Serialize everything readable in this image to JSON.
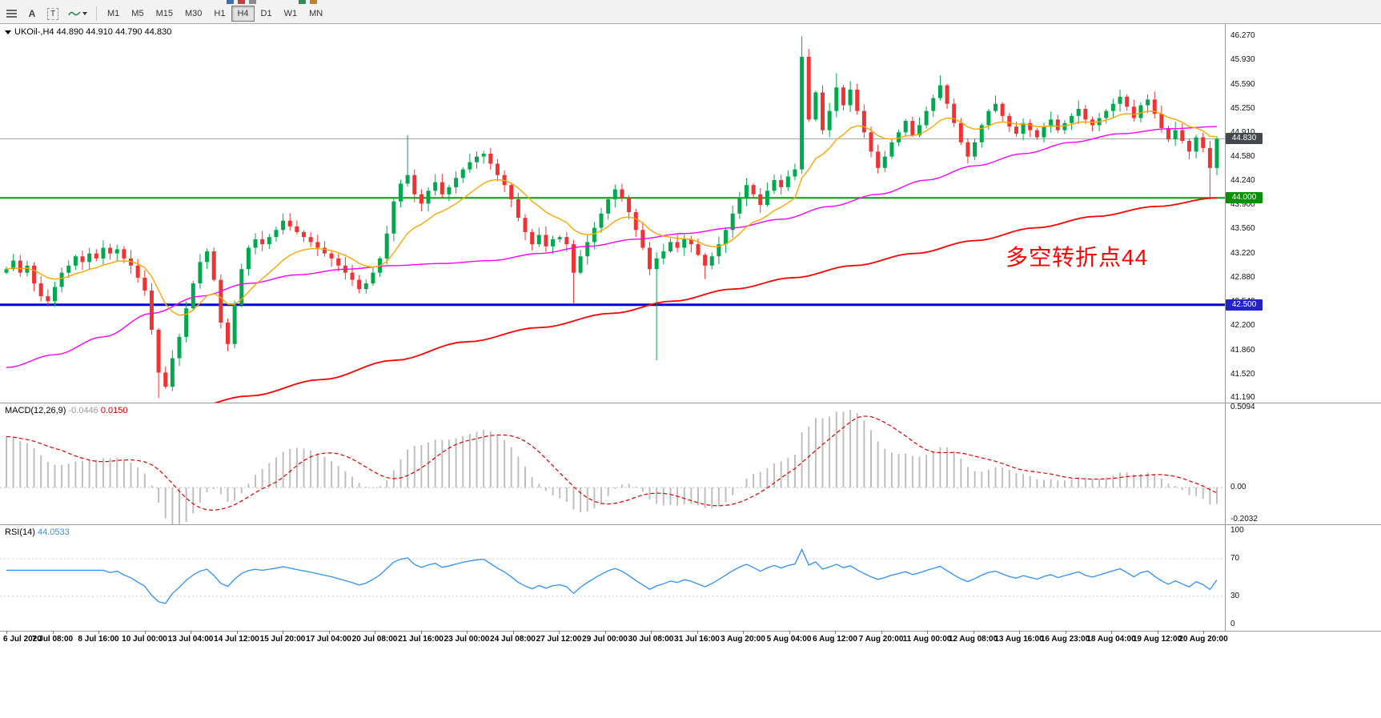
{
  "toolbar": {
    "text_tool_label": "A",
    "label_tool_label": "T",
    "timeframes": [
      "M1",
      "M5",
      "M15",
      "M30",
      "H1",
      "H4",
      "D1",
      "W1",
      "MN"
    ],
    "active_timeframe": "H4"
  },
  "chart": {
    "header_text": "UKOil-,H4 44.890 44.910 44.790 44.830",
    "annotation": {
      "text": "多空转折点44",
      "color": "#FF0000"
    },
    "price_axis_labels": [
      "46.270",
      "45.930",
      "45.590",
      "45.250",
      "44.910",
      "44.580",
      "44.240",
      "43.900",
      "43.560",
      "43.220",
      "42.880",
      "42.540",
      "42.200",
      "41.860",
      "41.520",
      "41.190"
    ],
    "price_tags": [
      {
        "text": "44.830",
        "price": 44.83,
        "bg": "#43484D",
        "line_color": "#A0A0A0",
        "line_width": 1
      },
      {
        "text": "44.000",
        "price": 44.0,
        "bg": "#009100",
        "line_color": "#00A000",
        "line_width": 2
      },
      {
        "text": "42.500",
        "price": 42.5,
        "bg": "#2222CC",
        "line_color": "#0000E0",
        "line_width": 3
      }
    ],
    "colors": {
      "up": "#00A84E",
      "down": "#EF3333",
      "ma_fast": "#FFA500",
      "ma_mid": "#FF00FF",
      "ma_slow": "#FF0000",
      "macd_hist": "#BFBFBF",
      "macd_signal": "#DD0000",
      "rsi": "#2E90FF"
    }
  },
  "macd": {
    "label": "MACD(12,26,9)",
    "main_value": "-0.0446",
    "signal_value": "0.0150",
    "axis_labels": [
      "0.5094",
      "0.00",
      "-0.2032"
    ],
    "axis_max": 0.5094,
    "axis_min": -0.2032
  },
  "rsi": {
    "label": "RSI(14)",
    "value": "44.0533",
    "axis_labels": [
      "100",
      "70",
      "30",
      "0"
    ],
    "levels": [
      70,
      30
    ]
  },
  "chart_data": {
    "type": "candlestick",
    "symbol": "UKOil-",
    "timeframe": "H4",
    "ohlc_display": {
      "open": "44.890",
      "high": "44.910",
      "low": "44.790",
      "close": "44.830"
    },
    "visible_high": 46.27,
    "visible_low": 41.19,
    "last_price": 44.83,
    "horizontal_lines": [
      44.0,
      42.5
    ],
    "first_open": 42.95,
    "closes": [
      43.0,
      43.12,
      42.95,
      43.05,
      42.8,
      42.62,
      42.55,
      42.75,
      42.95,
      43.05,
      43.18,
      43.1,
      43.22,
      43.15,
      43.3,
      43.22,
      43.28,
      43.15,
      43.05,
      42.88,
      42.7,
      42.15,
      41.55,
      41.35,
      41.75,
      42.05,
      42.45,
      42.8,
      43.1,
      43.25,
      42.85,
      42.25,
      41.95,
      42.5,
      43.0,
      43.3,
      43.42,
      43.35,
      43.45,
      43.55,
      43.68,
      43.6,
      43.52,
      43.45,
      43.38,
      43.3,
      43.22,
      43.15,
      43.05,
      42.95,
      42.85,
      42.72,
      42.8,
      42.95,
      43.15,
      43.5,
      43.95,
      44.2,
      44.32,
      44.05,
      43.92,
      44.1,
      44.22,
      44.05,
      44.15,
      44.28,
      44.4,
      44.5,
      44.58,
      44.62,
      44.48,
      44.32,
      44.18,
      43.98,
      43.72,
      43.52,
      43.35,
      43.48,
      43.32,
      43.42,
      43.45,
      43.35,
      42.95,
      43.18,
      43.38,
      43.58,
      43.78,
      43.98,
      44.12,
      44.0,
      43.8,
      43.55,
      43.3,
      43.0,
      43.15,
      43.25,
      43.38,
      43.3,
      43.42,
      43.35,
      43.2,
      43.05,
      43.18,
      43.35,
      43.55,
      43.78,
      44.0,
      44.18,
      44.05,
      43.9,
      44.1,
      44.25,
      44.15,
      44.3,
      44.4,
      45.98,
      45.1,
      45.48,
      44.95,
      45.22,
      45.55,
      45.3,
      45.52,
      45.22,
      44.92,
      44.65,
      44.42,
      44.58,
      44.78,
      44.92,
      45.08,
      44.88,
      45.02,
      45.22,
      45.4,
      45.58,
      45.32,
      45.05,
      44.78,
      44.58,
      44.78,
      45.02,
      45.22,
      45.32,
      45.15,
      45.0,
      44.9,
      45.05,
      44.95,
      44.85,
      45.0,
      45.1,
      44.95,
      45.05,
      45.15,
      45.25,
      45.1,
      45.02,
      45.12,
      45.22,
      45.32,
      45.42,
      45.28,
      45.12,
      45.3,
      45.38,
      45.18,
      44.98,
      44.82,
      44.95,
      44.8,
      44.65,
      44.85,
      44.7,
      44.42,
      44.83
    ],
    "special_wicks": {
      "22": {
        "low": 41.19
      },
      "32": {
        "low": 41.85
      },
      "58": {
        "high": 44.88
      },
      "69": {
        "high": 44.66
      },
      "82": {
        "low": 42.52
      },
      "94": {
        "low": 41.72
      },
      "101": {
        "low": 42.86
      },
      "115": {
        "high": 46.27
      },
      "120": {
        "high": 45.75
      },
      "135": {
        "high": 45.72
      },
      "161": {
        "high": 45.52
      },
      "174": {
        "low": 43.98
      }
    },
    "ma_mid_anchors": [
      [
        0,
        41.62
      ],
      [
        0.04,
        41.8
      ],
      [
        0.08,
        42.05
      ],
      [
        0.12,
        42.38
      ],
      [
        0.16,
        42.62
      ],
      [
        0.2,
        42.8
      ],
      [
        0.24,
        42.92
      ],
      [
        0.28,
        43.0
      ],
      [
        0.32,
        43.05
      ],
      [
        0.36,
        43.08
      ],
      [
        0.4,
        43.12
      ],
      [
        0.44,
        43.22
      ],
      [
        0.48,
        43.32
      ],
      [
        0.52,
        43.42
      ],
      [
        0.56,
        43.5
      ],
      [
        0.6,
        43.58
      ],
      [
        0.64,
        43.7
      ],
      [
        0.68,
        43.88
      ],
      [
        0.72,
        44.05
      ],
      [
        0.76,
        44.25
      ],
      [
        0.8,
        44.45
      ],
      [
        0.84,
        44.62
      ],
      [
        0.88,
        44.78
      ],
      [
        0.92,
        44.9
      ],
      [
        0.96,
        44.97
      ],
      [
        1,
        45.0
      ]
    ],
    "ma_slow_anchors": [
      [
        0,
        40.55
      ],
      [
        0.08,
        40.85
      ],
      [
        0.15,
        41.05
      ],
      [
        0.2,
        41.22
      ],
      [
        0.26,
        41.45
      ],
      [
        0.32,
        41.72
      ],
      [
        0.38,
        41.98
      ],
      [
        0.44,
        42.18
      ],
      [
        0.5,
        42.38
      ],
      [
        0.55,
        42.55
      ],
      [
        0.6,
        42.72
      ],
      [
        0.65,
        42.88
      ],
      [
        0.7,
        43.05
      ],
      [
        0.75,
        43.22
      ],
      [
        0.8,
        43.4
      ],
      [
        0.85,
        43.58
      ],
      [
        0.9,
        43.74
      ],
      [
        0.95,
        43.88
      ],
      [
        1,
        44.0
      ]
    ],
    "time_labels": [
      "6 Jul 2020",
      "7 Jul 08:00",
      "8 Jul 16:00",
      "10 Jul 00:00",
      "13 Jul 04:00",
      "14 Jul 12:00",
      "15 Jul 20:00",
      "17 Jul 04:00",
      "20 Jul 08:00",
      "21 Jul 16:00",
      "23 Jul 00:00",
      "24 Jul 08:00",
      "27 Jul 12:00",
      "29 Jul 00:00",
      "30 Jul 08:00",
      "31 Jul 16:00",
      "3 Aug 20:00",
      "5 Aug 04:00",
      "6 Aug 12:00",
      "7 Aug 20:00",
      "11 Aug 00:00",
      "12 Aug 08:00",
      "13 Aug 16:00",
      "16 Aug 23:00",
      "18 Aug 04:00",
      "19 Aug 12:00",
      "20 Aug 20:00"
    ]
  }
}
